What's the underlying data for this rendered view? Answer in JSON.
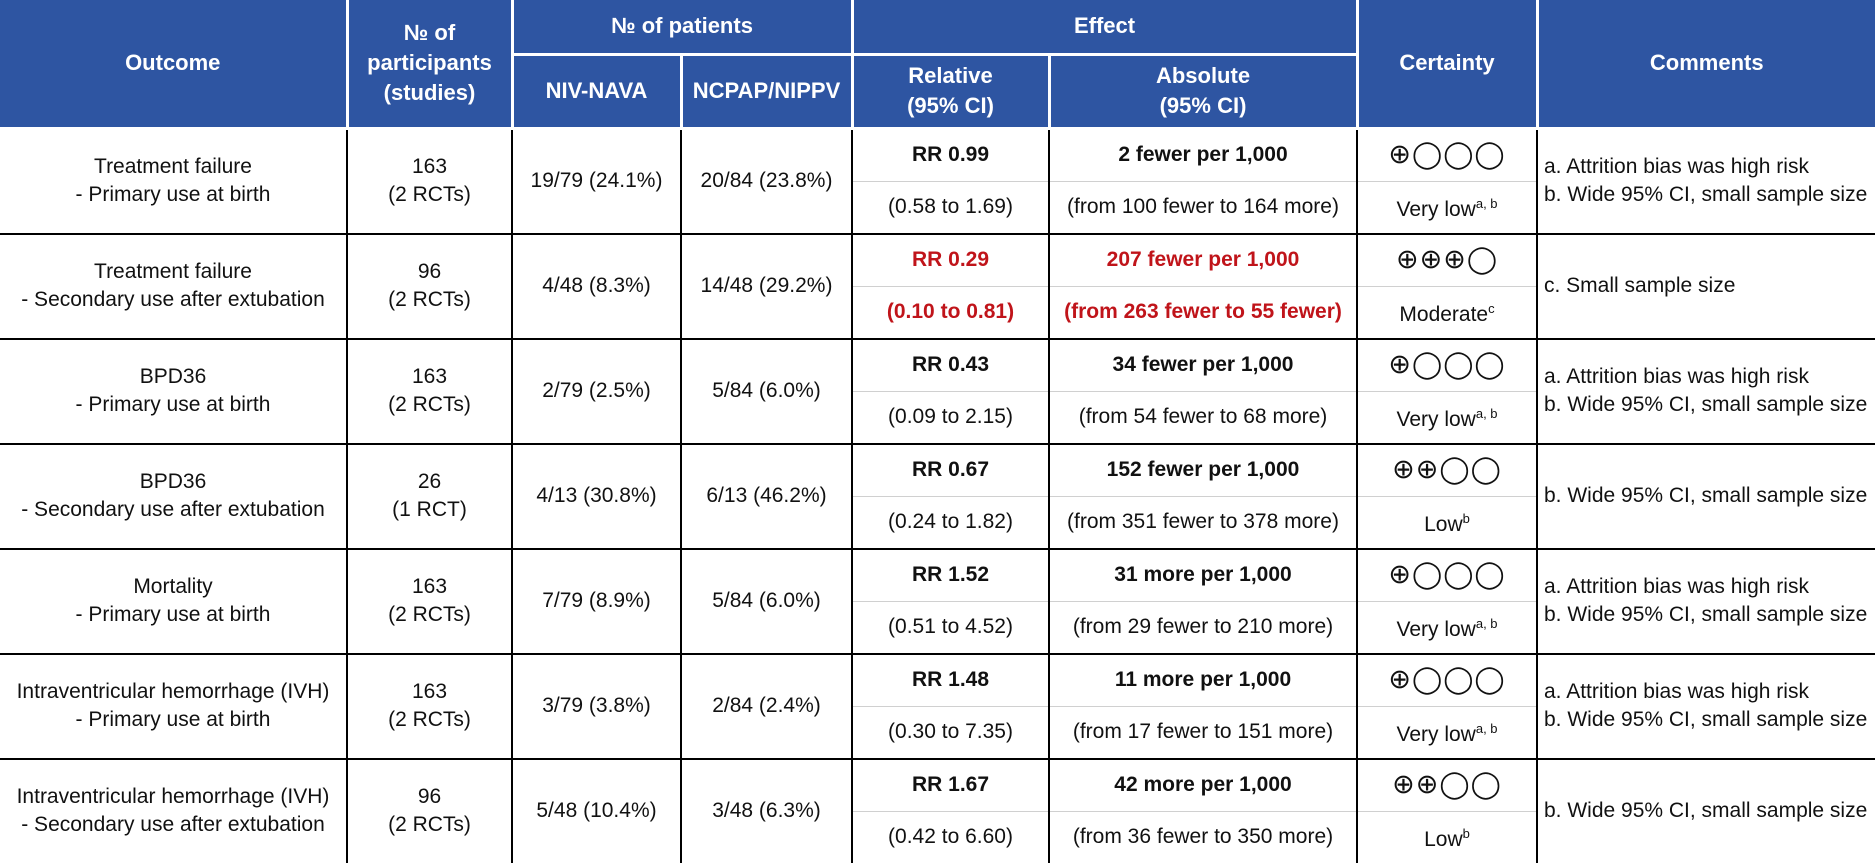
{
  "headers": {
    "outcome": "Outcome",
    "participants": "№ of participants (studies)",
    "patients": "№ of patients",
    "niv_nava": "NIV-NAVA",
    "ncpap": "NCPAP/NIPPV",
    "effect": "Effect",
    "relative": "Relative (95% CI)",
    "absolute": "Absolute (95% CI)",
    "certainty": "Certainty",
    "comments": "Comments"
  },
  "rows": [
    {
      "outcome_1": "Treatment failure",
      "outcome_2": "- Primary use at birth",
      "n": "163",
      "studies": "(2 RCTs)",
      "niv_nava": "19/79 (24.1%)",
      "ncpap": "20/84 (23.8%)",
      "rr": "RR 0.99",
      "rr_ci": "(0.58 to 1.69)",
      "abs": "2 fewer per 1,000",
      "abs_ci": "(from 100 fewer to 164 more)",
      "symbols": "⊕◯◯◯",
      "certainty": "Very low",
      "cert_sup": "a, b",
      "comment_1": "a. Attrition bias was high risk",
      "comment_2": "b. Wide 95% CI, small sample size",
      "highlight": false
    },
    {
      "outcome_1": "Treatment failure",
      "outcome_2": "- Secondary use after extubation",
      "n": "96",
      "studies": "(2 RCTs)",
      "niv_nava": "4/48 (8.3%)",
      "ncpap": "14/48 (29.2%)",
      "rr": "RR 0.29",
      "rr_ci": "(0.10 to 0.81)",
      "abs": "207 fewer per 1,000",
      "abs_ci": "(from 263 fewer to 55 fewer)",
      "symbols": "⊕⊕⊕◯",
      "certainty": "Moderate",
      "cert_sup": "c",
      "comment_1": "c. Small sample size",
      "comment_2": "",
      "highlight": true
    },
    {
      "outcome_1": "BPD36",
      "outcome_2": "- Primary use at birth",
      "n": "163",
      "studies": "(2 RCTs)",
      "niv_nava": "2/79 (2.5%)",
      "ncpap": "5/84 (6.0%)",
      "rr": "RR 0.43",
      "rr_ci": "(0.09 to 2.15)",
      "abs": "34 fewer per 1,000",
      "abs_ci": "(from 54 fewer to 68 more)",
      "symbols": "⊕◯◯◯",
      "certainty": "Very low",
      "cert_sup": "a, b",
      "comment_1": "a. Attrition bias was high risk",
      "comment_2": "b. Wide 95% CI, small sample size",
      "highlight": false
    },
    {
      "outcome_1": "BPD36",
      "outcome_2": "- Secondary use after extubation",
      "n": "26",
      "studies": "(1 RCT)",
      "niv_nava": "4/13 (30.8%)",
      "ncpap": "6/13 (46.2%)",
      "rr": "RR 0.67",
      "rr_ci": "(0.24 to 1.82)",
      "abs": "152 fewer per 1,000",
      "abs_ci": "(from 351 fewer to 378 more)",
      "symbols": "⊕⊕◯◯",
      "certainty": "Low",
      "cert_sup": "b",
      "comment_1": "b. Wide 95% CI, small sample size",
      "comment_2": "",
      "highlight": false
    },
    {
      "outcome_1": "Mortality",
      "outcome_2": "- Primary use at birth",
      "n": "163",
      "studies": "(2 RCTs)",
      "niv_nava": "7/79 (8.9%)",
      "ncpap": "5/84 (6.0%)",
      "rr": "RR 1.52",
      "rr_ci": "(0.51 to 4.52)",
      "abs": "31 more per 1,000",
      "abs_ci": "(from 29 fewer to 210 more)",
      "symbols": "⊕◯◯◯",
      "certainty": "Very low",
      "cert_sup": "a, b",
      "comment_1": "a. Attrition bias was high risk",
      "comment_2": "b. Wide 95% CI, small sample size",
      "highlight": false
    },
    {
      "outcome_1": "Intraventricular hemorrhage (IVH)",
      "outcome_2": "- Primary use at birth",
      "n": "163",
      "studies": "(2 RCTs)",
      "niv_nava": "3/79 (3.8%)",
      "ncpap": "2/84 (2.4%)",
      "rr": "RR 1.48",
      "rr_ci": "(0.30 to 7.35)",
      "abs": "11 more per 1,000",
      "abs_ci": "(from 17 fewer to 151 more)",
      "symbols": "⊕◯◯◯",
      "certainty": "Very low",
      "cert_sup": "a, b",
      "comment_1": "a. Attrition bias was high risk",
      "comment_2": "b. Wide 95% CI, small sample size",
      "highlight": false
    },
    {
      "outcome_1": "Intraventricular hemorrhage (IVH)",
      "outcome_2": "- Secondary use after extubation",
      "n": "96",
      "studies": "(2 RCTs)",
      "niv_nava": "5/48 (10.4%)",
      "ncpap": "3/48 (6.3%)",
      "rr": "RR 1.67",
      "rr_ci": "(0.42 to 6.60)",
      "abs": "42 more per 1,000",
      "abs_ci": "(from 36 fewer to 350 more)",
      "symbols": "⊕⊕◯◯",
      "certainty": "Low",
      "cert_sup": "b",
      "comment_1": "b. Wide 95% CI, small sample size",
      "comment_2": "",
      "highlight": false
    }
  ],
  "colors": {
    "header_bg": "#2e55a2",
    "highlight": "#c0141a"
  }
}
